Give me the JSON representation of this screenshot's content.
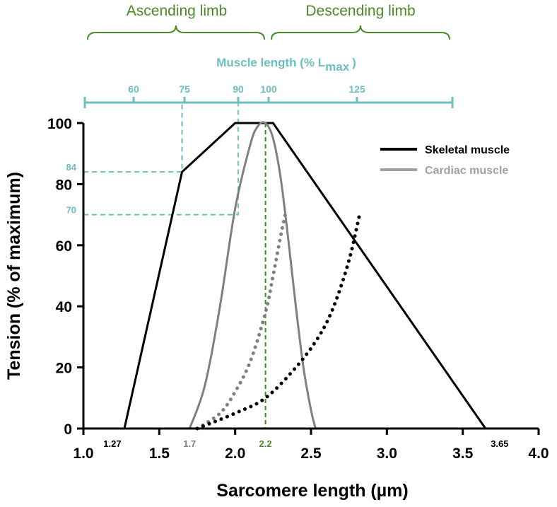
{
  "chart_data": {
    "type": "line",
    "xlabel": "Sarcomere length (µm)",
    "ylabel": "Tension (% of maximum)",
    "xlim": [
      1.0,
      4.0
    ],
    "ylim": [
      0,
      100
    ],
    "x_ticks": [
      "1.0",
      "1.5",
      "2.0",
      "2.5",
      "3.0",
      "3.5",
      "4.0"
    ],
    "y_ticks": [
      "0",
      "20",
      "40",
      "60",
      "80",
      "100"
    ],
    "x_annotations": [
      {
        "x": 1.27,
        "text": "1.27",
        "color": "#000000"
      },
      {
        "x": 1.7,
        "text": "1.7",
        "color": "#808080"
      },
      {
        "x": 2.2,
        "text": "2.2",
        "color": "#4a8a2a"
      },
      {
        "x": 3.65,
        "text": "3.65",
        "color": "#000000"
      }
    ],
    "y_annotations": [
      {
        "y": 84,
        "text": "84"
      },
      {
        "y": 70,
        "text": "70"
      }
    ],
    "top_axis": {
      "title_prefix": "Muscle length (% L",
      "title_sub": "max",
      "title_suffix": ")",
      "ticks": [
        {
          "x": 1.27,
          "label": ""
        },
        {
          "x": 1.32,
          "label": "60"
        },
        {
          "x": 1.65,
          "label": "75"
        },
        {
          "x": 1.98,
          "label": "90"
        },
        {
          "x": 2.2,
          "label": "100"
        },
        {
          "x": 2.75,
          "label": "125"
        },
        {
          "x": 3.43,
          "label": ""
        }
      ]
    },
    "limbs": [
      {
        "label": "Ascending limb",
        "x_start": 1.02,
        "x_end": 2.2
      },
      {
        "label": "Descending limb",
        "x_start": 2.2,
        "x_end": 3.43
      }
    ],
    "guides": [
      {
        "x": 1.65,
        "y": 84
      },
      {
        "x": 2.02,
        "y": 70
      }
    ],
    "marker_x": 2.2,
    "series": [
      {
        "name": "Skeletal muscle",
        "color": "#000000",
        "style": "solid",
        "x": [
          1.27,
          1.65,
          2.0,
          2.25,
          3.65
        ],
        "y": [
          0,
          84,
          100,
          100,
          0
        ]
      },
      {
        "name": "Cardiac muscle",
        "color": "#808080",
        "style": "solid",
        "x": [
          1.7,
          1.8,
          1.9,
          2.0,
          2.1,
          2.15,
          2.2,
          2.25,
          2.3,
          2.35,
          2.4,
          2.45,
          2.5,
          2.53
        ],
        "y": [
          0,
          14,
          40,
          72,
          93,
          99,
          100,
          95,
          82,
          62,
          40,
          20,
          6,
          0
        ]
      },
      {
        "color": "#808080",
        "style": "dotted",
        "x": [
          1.75,
          1.9,
          2.0,
          2.1,
          2.2,
          2.25,
          2.3,
          2.33
        ],
        "y": [
          0,
          5,
          12,
          22,
          38,
          50,
          63,
          70
        ]
      },
      {
        "color": "#000000",
        "style": "dotted",
        "x": [
          1.75,
          2.0,
          2.2,
          2.4,
          2.55,
          2.65,
          2.75,
          2.82
        ],
        "y": [
          0,
          5,
          10,
          20,
          30,
          40,
          55,
          70
        ]
      }
    ],
    "legend": {
      "position": "top-right",
      "items": [
        {
          "label": "Skeletal muscle",
          "color": "#000000",
          "text_color": "#000000"
        },
        {
          "label": "Cardiac muscle",
          "color": "#a0a0a0",
          "text_color": "#a0a0a0"
        }
      ]
    },
    "colors": {
      "limb": "#4a8a2a",
      "top_axis": "#6bbfbf",
      "guide": "#6bbfbf",
      "marker": "#4a8a2a"
    }
  }
}
